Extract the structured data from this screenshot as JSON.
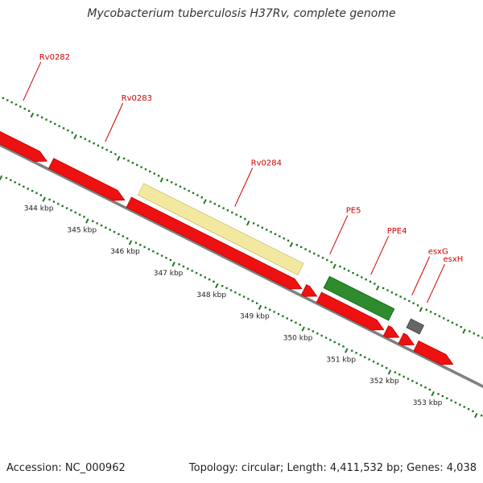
{
  "title": "Mycobacterium tuberculosis H37Rv, complete genome",
  "footer": {
    "accession": "Accession: NC_000962",
    "summary": "Topology: circular; Length: 4,411,532 bp; Genes: 4,038"
  },
  "colors": {
    "cds_forward": "#ee1111",
    "backbone": "#808080",
    "tick": "#1f7a1f",
    "gene_label": "#d00000",
    "pseudo_gene": "#f2e8a0",
    "pe_ppe": "#2e8b2e",
    "esx": "#666666"
  },
  "genes": [
    {
      "name": "Rv0282",
      "feature": "cds-forward",
      "start_kbp": 341.7,
      "end_kbp": 343.7
    },
    {
      "name": "Rv0283",
      "feature": "cds-forward",
      "start_kbp": 343.8,
      "end_kbp": 345.5
    },
    {
      "name": "Rv0284",
      "feature": "cds-forward",
      "start_kbp": 345.6,
      "end_kbp": 349.6
    },
    {
      "name": "PE5",
      "feature": "cds-forward",
      "start_kbp": 349.65,
      "end_kbp": 349.95
    },
    {
      "name": "PPE4",
      "feature": "cds-forward",
      "start_kbp": 350.0,
      "end_kbp": 351.5
    },
    {
      "name": "esxG",
      "feature": "cds-forward",
      "start_kbp": 351.55,
      "end_kbp": 351.85
    },
    {
      "name": "esxH",
      "feature": "cds-forward",
      "start_kbp": 351.9,
      "end_kbp": 352.2
    },
    {
      "name": "",
      "feature": "cds-forward",
      "start_kbp": 352.25,
      "end_kbp": 353.1
    }
  ],
  "secondary_features": [
    {
      "feature": "pseudo_gene",
      "start_kbp": 345.7,
      "end_kbp": 349.4
    },
    {
      "feature": "pe_ppe",
      "start_kbp": 350.0,
      "end_kbp": 351.5
    },
    {
      "feature": "esx",
      "start_kbp": 351.9,
      "end_kbp": 352.2
    }
  ],
  "axis": {
    "unit": "kbp",
    "ticks": [
      {
        "kbp": 344,
        "label": "344 kbp"
      },
      {
        "kbp": 345,
        "label": "345 kbp"
      },
      {
        "kbp": 346,
        "label": "346 kbp"
      },
      {
        "kbp": 347,
        "label": "347 kbp"
      },
      {
        "kbp": 348,
        "label": "348 kbp"
      },
      {
        "kbp": 349,
        "label": "349 kbp"
      },
      {
        "kbp": 350,
        "label": "350 kbp"
      },
      {
        "kbp": 351,
        "label": "351 kbp"
      },
      {
        "kbp": 352,
        "label": "352 kbp"
      },
      {
        "kbp": 353,
        "label": "353 kbp"
      }
    ]
  }
}
